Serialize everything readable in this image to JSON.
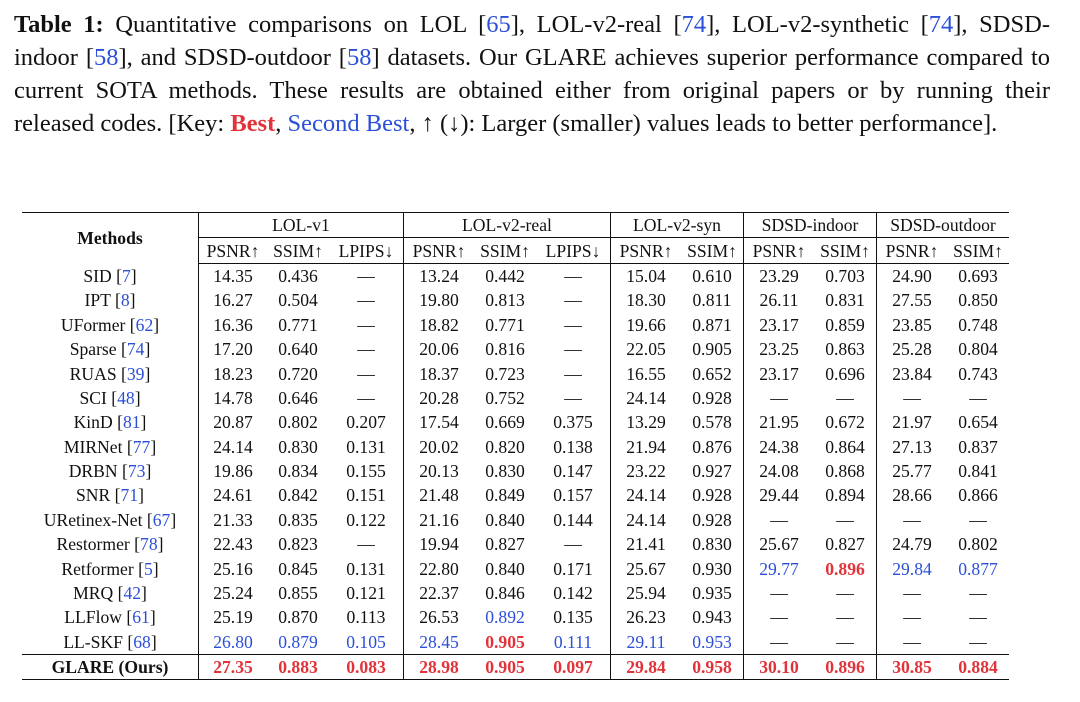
{
  "caption": {
    "label": "Table 1:",
    "t1": " Quantitative comparisons on LOL [",
    "r65": "65",
    "t2": "], LOL-v2-real [",
    "r74a": "74",
    "t3": "], LOL-v2-synthetic [",
    "r74b": "74",
    "t4": "], SDSD-indoor [",
    "r58a": "58",
    "t5": "], and SDSD-outdoor [",
    "r58b": "58",
    "t6": "] datasets. Our GLARE achieves superior performance compared to current SOTA methods. These results are obtained either from original papers or by running their released codes. [Key: ",
    "best": "Best",
    "comma": ",",
    "second": "Second Best",
    "t7": ", ↑ (↓): Larger (smaller) values leads to better performance]."
  },
  "header": {
    "methods": "Methods",
    "groups": [
      "LOL-v1",
      "LOL-v2-real",
      "LOL-v2-syn",
      "SDSD-indoor",
      "SDSD-outdoor"
    ],
    "metrics": [
      "PSNR↑",
      "SSIM↑",
      "LPIPS↓",
      "PSNR↑",
      "SSIM↑",
      "LPIPS↓",
      "PSNR↑",
      "SSIM↑",
      "PSNR↑",
      "SSIM↑",
      "PSNR↑",
      "SSIM↑"
    ]
  },
  "rows": [
    {
      "name": "SID",
      "ref": "7",
      "v": [
        "14.35",
        "0.436",
        "—",
        "13.24",
        "0.442",
        "—",
        "15.04",
        "0.610",
        "23.29",
        "0.703",
        "24.90",
        "0.693"
      ],
      "s": [
        "",
        "",
        "",
        "",
        "",
        "",
        "",
        "",
        "",
        "",
        "",
        ""
      ]
    },
    {
      "name": "IPT",
      "ref": "8",
      "v": [
        "16.27",
        "0.504",
        "—",
        "19.80",
        "0.813",
        "—",
        "18.30",
        "0.811",
        "26.11",
        "0.831",
        "27.55",
        "0.850"
      ],
      "s": [
        "",
        "",
        "",
        "",
        "",
        "",
        "",
        "",
        "",
        "",
        "",
        ""
      ]
    },
    {
      "name": "UFormer",
      "ref": "62",
      "v": [
        "16.36",
        "0.771",
        "—",
        "18.82",
        "0.771",
        "—",
        "19.66",
        "0.871",
        "23.17",
        "0.859",
        "23.85",
        "0.748"
      ],
      "s": [
        "",
        "",
        "",
        "",
        "",
        "",
        "",
        "",
        "",
        "",
        "",
        ""
      ]
    },
    {
      "name": "Sparse",
      "ref": "74",
      "v": [
        "17.20",
        "0.640",
        "—",
        "20.06",
        "0.816",
        "—",
        "22.05",
        "0.905",
        "23.25",
        "0.863",
        "25.28",
        "0.804"
      ],
      "s": [
        "",
        "",
        "",
        "",
        "",
        "",
        "",
        "",
        "",
        "",
        "",
        ""
      ]
    },
    {
      "name": "RUAS",
      "ref": "39",
      "v": [
        "18.23",
        "0.720",
        "—",
        "18.37",
        "0.723",
        "—",
        "16.55",
        "0.652",
        "23.17",
        "0.696",
        "23.84",
        "0.743"
      ],
      "s": [
        "",
        "",
        "",
        "",
        "",
        "",
        "",
        "",
        "",
        "",
        "",
        ""
      ]
    },
    {
      "name": "SCI",
      "ref": "48",
      "v": [
        "14.78",
        "0.646",
        "—",
        "20.28",
        "0.752",
        "—",
        "24.14",
        "0.928",
        "—",
        "—",
        "—",
        "—"
      ],
      "s": [
        "",
        "",
        "",
        "",
        "",
        "",
        "",
        "",
        "",
        "",
        "",
        ""
      ]
    },
    {
      "name": "KinD",
      "ref": "81",
      "v": [
        "20.87",
        "0.802",
        "0.207",
        "17.54",
        "0.669",
        "0.375",
        "13.29",
        "0.578",
        "21.95",
        "0.672",
        "21.97",
        "0.654"
      ],
      "s": [
        "",
        "",
        "",
        "",
        "",
        "",
        "",
        "",
        "",
        "",
        "",
        ""
      ]
    },
    {
      "name": "MIRNet",
      "ref": "77",
      "v": [
        "24.14",
        "0.830",
        "0.131",
        "20.02",
        "0.820",
        "0.138",
        "21.94",
        "0.876",
        "24.38",
        "0.864",
        "27.13",
        "0.837"
      ],
      "s": [
        "",
        "",
        "",
        "",
        "",
        "",
        "",
        "",
        "",
        "",
        "",
        ""
      ]
    },
    {
      "name": "DRBN",
      "ref": "73",
      "v": [
        "19.86",
        "0.834",
        "0.155",
        "20.13",
        "0.830",
        "0.147",
        "23.22",
        "0.927",
        "24.08",
        "0.868",
        "25.77",
        "0.841"
      ],
      "s": [
        "",
        "",
        "",
        "",
        "",
        "",
        "",
        "",
        "",
        "",
        "",
        ""
      ]
    },
    {
      "name": "SNR",
      "ref": "71",
      "v": [
        "24.61",
        "0.842",
        "0.151",
        "21.48",
        "0.849",
        "0.157",
        "24.14",
        "0.928",
        "29.44",
        "0.894",
        "28.66",
        "0.866"
      ],
      "s": [
        "",
        "",
        "",
        "",
        "",
        "",
        "",
        "",
        "",
        "",
        "",
        ""
      ]
    },
    {
      "name": "URetinex-Net",
      "ref": "67",
      "v": [
        "21.33",
        "0.835",
        "0.122",
        "21.16",
        "0.840",
        "0.144",
        "24.14",
        "0.928",
        "—",
        "—",
        "—",
        "—"
      ],
      "s": [
        "",
        "",
        "",
        "",
        "",
        "",
        "",
        "",
        "",
        "",
        "",
        ""
      ]
    },
    {
      "name": "Restormer",
      "ref": "78",
      "v": [
        "22.43",
        "0.823",
        "—",
        "19.94",
        "0.827",
        "—",
        "21.41",
        "0.830",
        "25.67",
        "0.827",
        "24.79",
        "0.802"
      ],
      "s": [
        "",
        "",
        "",
        "",
        "",
        "",
        "",
        "",
        "",
        "",
        "",
        ""
      ]
    },
    {
      "name": "Retformer",
      "ref": "5",
      "v": [
        "25.16",
        "0.845",
        "0.131",
        "22.80",
        "0.840",
        "0.171",
        "25.67",
        "0.930",
        "29.77",
        "0.896",
        "29.84",
        "0.877"
      ],
      "s": [
        "",
        "",
        "",
        "",
        "",
        "",
        "",
        "",
        "b",
        "r",
        "b",
        "b"
      ]
    },
    {
      "name": "MRQ",
      "ref": "42",
      "v": [
        "25.24",
        "0.855",
        "0.121",
        "22.37",
        "0.846",
        "0.142",
        "25.94",
        "0.935",
        "—",
        "—",
        "—",
        "—"
      ],
      "s": [
        "",
        "",
        "",
        "",
        "",
        "",
        "",
        "",
        "",
        "",
        "",
        ""
      ]
    },
    {
      "name": "LLFlow",
      "ref": "61",
      "v": [
        "25.19",
        "0.870",
        "0.113",
        "26.53",
        "0.892",
        "0.135",
        "26.23",
        "0.943",
        "—",
        "—",
        "—",
        "—"
      ],
      "s": [
        "",
        "",
        "",
        "",
        "b",
        "",
        "",
        "",
        "",
        "",
        "",
        ""
      ]
    },
    {
      "name": "LL-SKF",
      "ref": "68",
      "v": [
        "26.80",
        "0.879",
        "0.105",
        "28.45",
        "0.905",
        "0.111",
        "29.11",
        "0.953",
        "—",
        "—",
        "—",
        "—"
      ],
      "s": [
        "b",
        "b",
        "b",
        "b",
        "r",
        "b",
        "b",
        "b",
        "",
        "",
        "",
        ""
      ]
    }
  ],
  "ours": {
    "name": "GLARE (Ours)",
    "v": [
      "27.35",
      "0.883",
      "0.083",
      "28.98",
      "0.905",
      "0.097",
      "29.84",
      "0.958",
      "30.10",
      "0.896",
      "30.85",
      "0.884"
    ],
    "s": [
      "r",
      "r",
      "r",
      "r",
      "r",
      "r",
      "r",
      "r",
      "r",
      "r",
      "r",
      "r"
    ]
  },
  "colors": {
    "best": "#e0343a",
    "second": "#2b4fd8"
  }
}
